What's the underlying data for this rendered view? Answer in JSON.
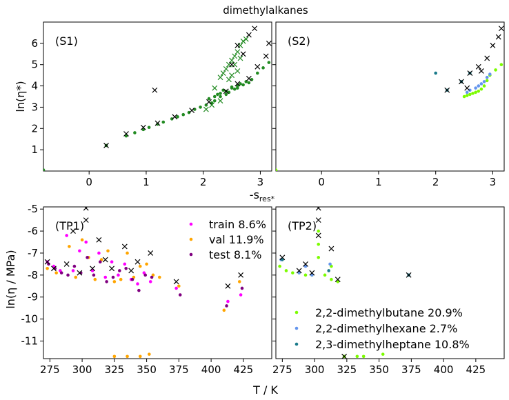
{
  "figure": {
    "title": "dimethylalkanes",
    "top_xlabel": "-s",
    "top_xlabel_sub": "res*",
    "top_ylabel": "ln(η*)",
    "bottom_xlabel": "T / K",
    "bottom_ylabel": "ln(η / MPa)"
  },
  "colors": {
    "train": "#ff00ff",
    "val": "#ffa500",
    "test": "#800080",
    "green": "#228b22",
    "dimethylbutane": "#7cfc00",
    "dimethylhexane": "#6495ed",
    "dimethylheptane": "#1a7a8a",
    "cross": "#000000"
  },
  "chart_data": [
    {
      "id": "S1",
      "label": "(S1)",
      "type": "scatter",
      "xlim": [
        -0.8,
        3.2
      ],
      "ylim": [
        0,
        7
      ],
      "xticks": [
        0,
        1,
        2,
        3
      ],
      "yticks": [
        1,
        2,
        3,
        4,
        5,
        6
      ],
      "series": [
        {
          "role": "green-dots",
          "x": [
            -0.8,
            0.3,
            0.65,
            0.8,
            0.95,
            1.05,
            1.2,
            1.3,
            1.45,
            1.55,
            1.65,
            1.75,
            1.85,
            1.95,
            2.05,
            2.15,
            2.2,
            2.3,
            2.4,
            2.45,
            2.55,
            2.6,
            2.7,
            2.8,
            2.85,
            2.95,
            3.05,
            3.15,
            2.25,
            2.35,
            2.5,
            2.65,
            2.75,
            2.1,
            2.2,
            2.3,
            2.4,
            2.5,
            2.6
          ],
          "y": [
            0.05,
            1.2,
            1.65,
            1.8,
            1.95,
            2.05,
            2.2,
            2.3,
            2.45,
            2.55,
            2.65,
            2.75,
            2.9,
            3.0,
            3.1,
            3.2,
            3.3,
            3.5,
            3.6,
            3.7,
            3.85,
            3.9,
            4.05,
            4.15,
            4.3,
            4.6,
            4.85,
            5.1,
            3.6,
            3.8,
            3.95,
            4.1,
            4.2,
            3.4,
            3.5,
            3.65,
            3.75,
            3.9,
            4.0
          ]
        },
        {
          "role": "green-crosses",
          "x": [
            2.45,
            2.5,
            2.55,
            2.6,
            2.65,
            2.7,
            2.75,
            2.4,
            2.5,
            2.6,
            2.3,
            2.35,
            2.55,
            2.2,
            2.45,
            2.65,
            2.05,
            2.15,
            2.3
          ],
          "y": [
            5.0,
            5.2,
            5.4,
            5.6,
            5.9,
            6.1,
            6.2,
            4.8,
            4.5,
            4.7,
            4.4,
            4.6,
            5.0,
            3.9,
            4.3,
            5.3,
            2.9,
            3.1,
            3.3
          ]
        },
        {
          "role": "black-crosses",
          "x": [
            0.3,
            0.65,
            0.95,
            1.2,
            1.5,
            1.8,
            2.1,
            2.4,
            2.6,
            2.8,
            2.95,
            3.1,
            3.15,
            2.5,
            2.7,
            2.8,
            2.6,
            2.9,
            1.15
          ],
          "y": [
            1.2,
            1.75,
            2.05,
            2.25,
            2.55,
            2.85,
            3.25,
            3.75,
            4.1,
            4.35,
            4.9,
            5.4,
            6.0,
            5.0,
            5.5,
            6.4,
            5.9,
            6.7,
            3.8
          ]
        }
      ]
    },
    {
      "id": "S2",
      "label": "(S2)",
      "type": "scatter",
      "xlim": [
        -0.8,
        3.2
      ],
      "ylim": [
        0,
        7
      ],
      "xticks": [
        0,
        1,
        2,
        3
      ],
      "yticks": [
        1,
        2,
        3,
        4,
        5,
        6
      ],
      "series": [
        {
          "name": "2,2-dimethylbutane",
          "x": [
            -0.8,
            2.5,
            2.55,
            2.6,
            2.65,
            2.7,
            2.75,
            2.8,
            2.85,
            2.9,
            2.95,
            3.05,
            3.15
          ],
          "y": [
            0.05,
            3.5,
            3.55,
            3.6,
            3.65,
            3.7,
            3.75,
            3.85,
            4.0,
            4.25,
            4.5,
            4.75,
            5.0
          ]
        },
        {
          "name": "2,2-dimethylhexane",
          "x": [
            2.55,
            2.6,
            2.7,
            2.75,
            2.8,
            2.85,
            2.9,
            2.95
          ],
          "y": [
            3.7,
            3.8,
            3.9,
            4.0,
            4.1,
            4.2,
            4.4,
            4.55
          ]
        },
        {
          "name": "2,3-dimethylheptane",
          "x": [
            2.0,
            2.2,
            2.45,
            2.6
          ],
          "y": [
            4.6,
            3.8,
            4.2,
            4.6
          ]
        },
        {
          "role": "black-crosses",
          "x": [
            2.2,
            2.45,
            2.6,
            2.75,
            2.9,
            3.0,
            3.1,
            3.15,
            2.8,
            2.55
          ],
          "y": [
            3.8,
            4.2,
            4.6,
            4.9,
            5.3,
            5.9,
            6.3,
            6.7,
            4.7,
            3.9
          ]
        }
      ]
    },
    {
      "id": "TP1",
      "label": "(TP1)",
      "type": "scatter",
      "xlim": [
        270,
        447
      ],
      "ylim": [
        -11.8,
        -4.9
      ],
      "xticks": [
        275,
        300,
        325,
        350,
        375,
        400,
        425
      ],
      "yticks": [
        -5,
        -6,
        -7,
        -8,
        -9,
        -10,
        -11
      ],
      "legend": {
        "placement": "top-right",
        "entries": [
          "train 8.6%",
          "val 11.9%",
          "test 8.1%"
        ]
      },
      "series": [
        {
          "name": "train",
          "x": [
            273,
            278,
            283,
            288,
            293,
            298,
            303,
            308,
            313,
            318,
            323,
            328,
            333,
            338,
            343,
            348,
            353,
            373,
            413,
            423
          ],
          "y": [
            -7.4,
            -7.6,
            -7.8,
            -6.2,
            -7.8,
            -6.9,
            -6.5,
            -7.8,
            -7.0,
            -8.1,
            -7.4,
            -8.0,
            -7.5,
            -8.2,
            -8.4,
            -7.9,
            -8.3,
            -8.6,
            -9.2,
            -8.9
          ]
        },
        {
          "name": "val",
          "x": [
            273,
            280,
            290,
            295,
            300,
            305,
            310,
            315,
            320,
            325,
            330,
            335,
            340,
            345,
            350,
            355,
            360,
            375,
            410,
            422,
            325,
            335,
            345,
            352
          ],
          "y": [
            -7.7,
            -7.9,
            -6.7,
            -8.1,
            -6.4,
            -7.2,
            -8.2,
            -7.3,
            -6.9,
            -8.3,
            -8.2,
            -7.0,
            -8.1,
            -7.6,
            -7.5,
            -8.0,
            -8.1,
            -8.5,
            -9.6,
            -8.3,
            -11.7,
            -11.7,
            -11.7,
            -11.6
          ]
        },
        {
          "name": "test",
          "x": [
            274,
            279,
            284,
            289,
            294,
            299,
            304,
            309,
            314,
            319,
            324,
            329,
            334,
            339,
            344,
            349,
            354,
            376,
            412,
            424
          ],
          "y": [
            -7.5,
            -7.7,
            -7.9,
            -8.0,
            -7.6,
            -7.9,
            -7.2,
            -8.0,
            -7.4,
            -8.3,
            -8.1,
            -7.8,
            -7.7,
            -8.2,
            -8.7,
            -8.0,
            -8.1,
            -8.9,
            -9.4,
            -8.6
          ]
        },
        {
          "role": "black-crosses",
          "x": [
            273,
            278,
            288,
            293,
            298,
            303,
            308,
            313,
            318,
            323,
            333,
            338,
            343,
            353,
            373,
            413,
            423,
            303
          ],
          "y": [
            -7.4,
            -7.7,
            -7.5,
            -6.0,
            -7.9,
            -5.5,
            -7.7,
            -6.4,
            -7.3,
            -7.7,
            -6.7,
            -7.8,
            -7.4,
            -7.0,
            -8.3,
            -8.5,
            -8.0,
            -4.95
          ]
        }
      ]
    },
    {
      "id": "TP2",
      "label": "(TP2)",
      "type": "scatter",
      "xlim": [
        270,
        447
      ],
      "ylim": [
        -11.8,
        -4.9
      ],
      "xticks": [
        275,
        300,
        325,
        350,
        375,
        400,
        425
      ],
      "yticks": [
        -5,
        -6,
        -7,
        -8,
        -9,
        -10,
        -11
      ],
      "legend": {
        "placement": "bottom-center",
        "entries": [
          "2,2-dimethylbutane 20.9%",
          "2,2-dimethylhexane 2.7%",
          "2,3-dimethylheptane 10.8%"
        ]
      },
      "series": [
        {
          "name": "2,2-dimethylbutane",
          "x": [
            273,
            278,
            283,
            288,
            293,
            298,
            303,
            303,
            303,
            308,
            313,
            313,
            318,
            323,
            333,
            338,
            353
          ],
          "y": [
            -7.6,
            -7.8,
            -7.9,
            -7.9,
            -8.0,
            -8.0,
            -6.0,
            -6.6,
            -7.2,
            -8.0,
            -7.6,
            -8.2,
            -8.3,
            -11.7,
            -11.7,
            -11.7,
            -11.6
          ]
        },
        {
          "name": "2,2-dimethylhexane",
          "x": [
            274,
            288,
            293,
            298,
            312,
            373
          ],
          "y": [
            -7.3,
            -7.9,
            -7.6,
            -8.0,
            -7.5,
            -8.0
          ]
        },
        {
          "name": "2,3-dimethylheptane",
          "x": [
            275,
            311,
            373
          ],
          "y": [
            -7.3,
            -7.8,
            -8.0
          ]
        },
        {
          "role": "black-crosses",
          "x": [
            275,
            288,
            293,
            298,
            303,
            303,
            313,
            318,
            323,
            373,
            303
          ],
          "y": [
            -7.2,
            -7.8,
            -7.5,
            -7.9,
            -5.5,
            -6.2,
            -6.8,
            -8.2,
            -11.7,
            -8.0,
            -4.95
          ]
        }
      ]
    }
  ]
}
